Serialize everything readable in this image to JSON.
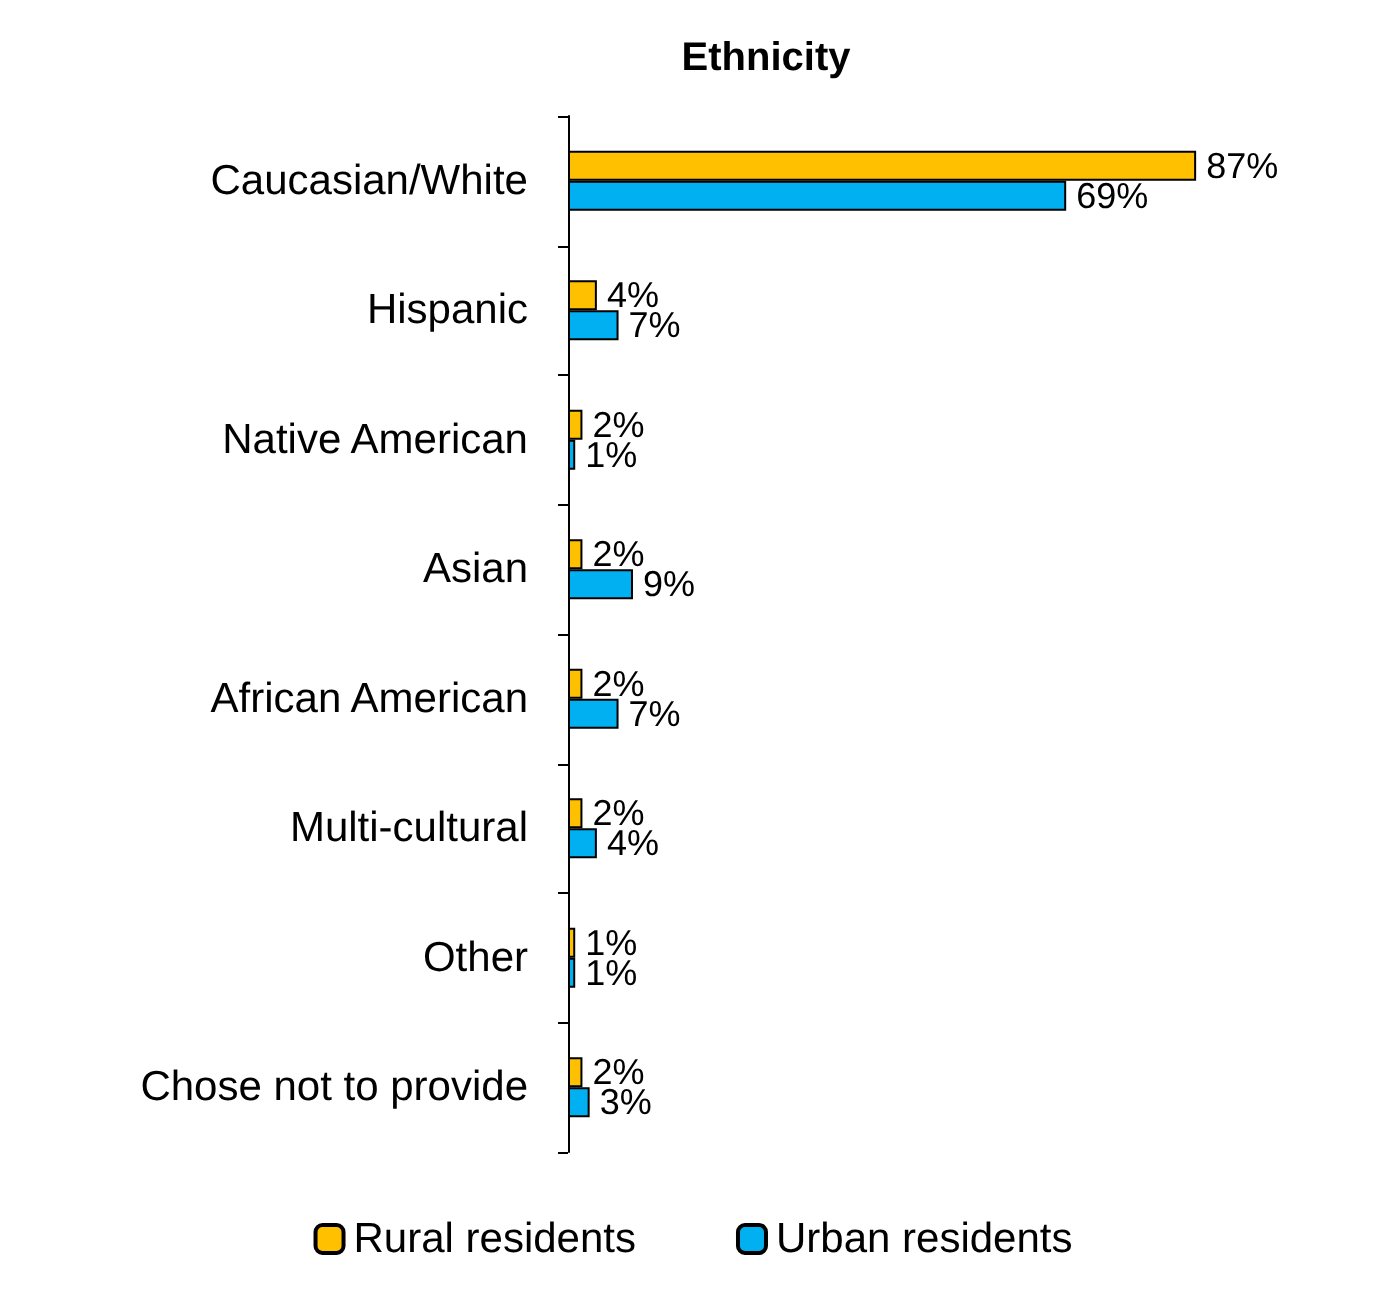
{
  "chart_data": {
    "type": "bar",
    "orientation": "horizontal",
    "title": "Ethnicity",
    "categories": [
      "Caucasian/White",
      "Hispanic",
      "Native American",
      "Asian",
      "African American",
      "Multi-cultural",
      "Other",
      "Chose not to provide"
    ],
    "series": [
      {
        "name": "Rural residents",
        "color": "#ffc000",
        "values": [
          87,
          4,
          2,
          2,
          2,
          2,
          1,
          2
        ],
        "value_labels": [
          "87%",
          "4%",
          "2%",
          "2%",
          "2%",
          "2%",
          "1%",
          "2%"
        ]
      },
      {
        "name": "Urban residents",
        "color": "#00b0f0",
        "values": [
          69,
          7,
          1,
          9,
          7,
          4,
          1,
          3
        ],
        "value_labels": [
          "69%",
          "7%",
          "1%",
          "9%",
          "7%",
          "4%",
          "1%",
          "3%"
        ]
      }
    ],
    "legend": "bottom"
  }
}
